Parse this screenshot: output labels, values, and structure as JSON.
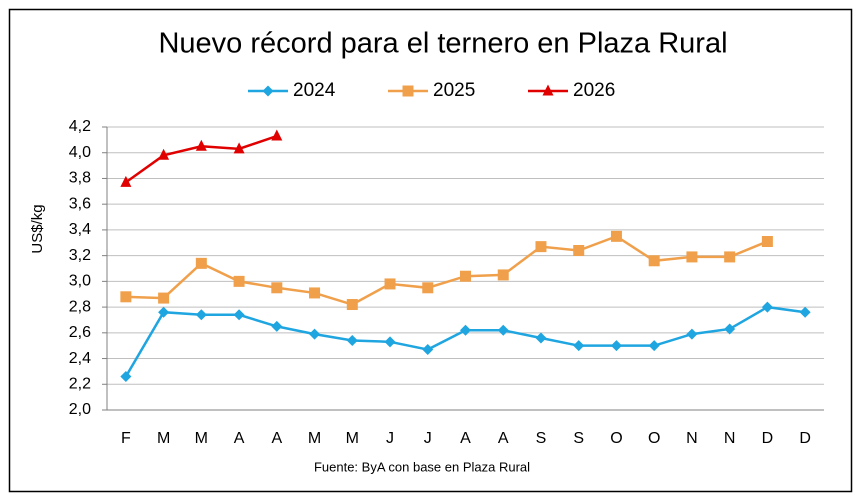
{
  "chart_data": {
    "type": "line",
    "title": "Nuevo récord para el ternero en Plaza Rural",
    "y_label": "US$/kg",
    "note": "Fuente: ByA con base en Plaza Rural",
    "categories": [
      "F",
      "M",
      "M",
      "A",
      "A",
      "M",
      "M",
      "J",
      "J",
      "A",
      "A",
      "S",
      "S",
      "O",
      "O",
      "N",
      "N",
      "D",
      "D"
    ],
    "series": [
      {
        "name": "2024",
        "color": "#1fa5e0",
        "marker": "diamond",
        "values": [
          2.26,
          2.76,
          2.74,
          2.74,
          2.65,
          2.59,
          2.54,
          2.53,
          2.47,
          2.62,
          2.62,
          2.56,
          2.5,
          2.5,
          2.5,
          2.59,
          2.63,
          2.8,
          2.76
        ]
      },
      {
        "name": "2025",
        "color": "#f0a04b",
        "marker": "square",
        "values": [
          2.88,
          2.87,
          3.14,
          3.0,
          2.95,
          2.91,
          2.82,
          2.98,
          2.95,
          3.04,
          3.05,
          3.27,
          3.24,
          3.35,
          3.16,
          3.19,
          3.19,
          3.31,
          null
        ]
      },
      {
        "name": "2026",
        "color": "#e00000",
        "marker": "triangle",
        "values": [
          3.77,
          3.98,
          4.05,
          4.03,
          4.13,
          null,
          null,
          null,
          null,
          null,
          null,
          null,
          null,
          null,
          null,
          null,
          null,
          null,
          null
        ]
      }
    ],
    "ylim": [
      2.0,
      4.2
    ],
    "yticks": [
      {
        "value": 2.0,
        "label": "2,0"
      },
      {
        "value": 2.2,
        "label": "2,2"
      },
      {
        "value": 2.4,
        "label": "2,4"
      },
      {
        "value": 2.6,
        "label": "2,6"
      },
      {
        "value": 2.8,
        "label": "2,8"
      },
      {
        "value": 3.0,
        "label": "3,0"
      },
      {
        "value": 3.2,
        "label": "3,2"
      },
      {
        "value": 3.4,
        "label": "3,4"
      },
      {
        "value": 3.6,
        "label": "3,6"
      },
      {
        "value": 3.8,
        "label": "3,8"
      },
      {
        "value": 4.0,
        "label": "4,0"
      },
      {
        "value": 4.2,
        "label": "4,2"
      }
    ],
    "grid": true
  }
}
